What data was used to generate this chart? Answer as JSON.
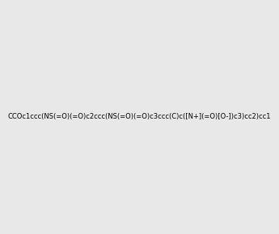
{
  "smiles": "CCOc1ccc(NS(=O)(=O)c2ccc(NS(=O)(=O)c3ccc(C)c([N+](=O)[O-])c3)cc2)cc1",
  "image_size": 300,
  "background_color": "#e8e8e8",
  "atom_colors": {
    "N": "#0000ff",
    "O": "#ff0000",
    "S": "#cccc00",
    "C": "#000000",
    "H": "#000000"
  }
}
